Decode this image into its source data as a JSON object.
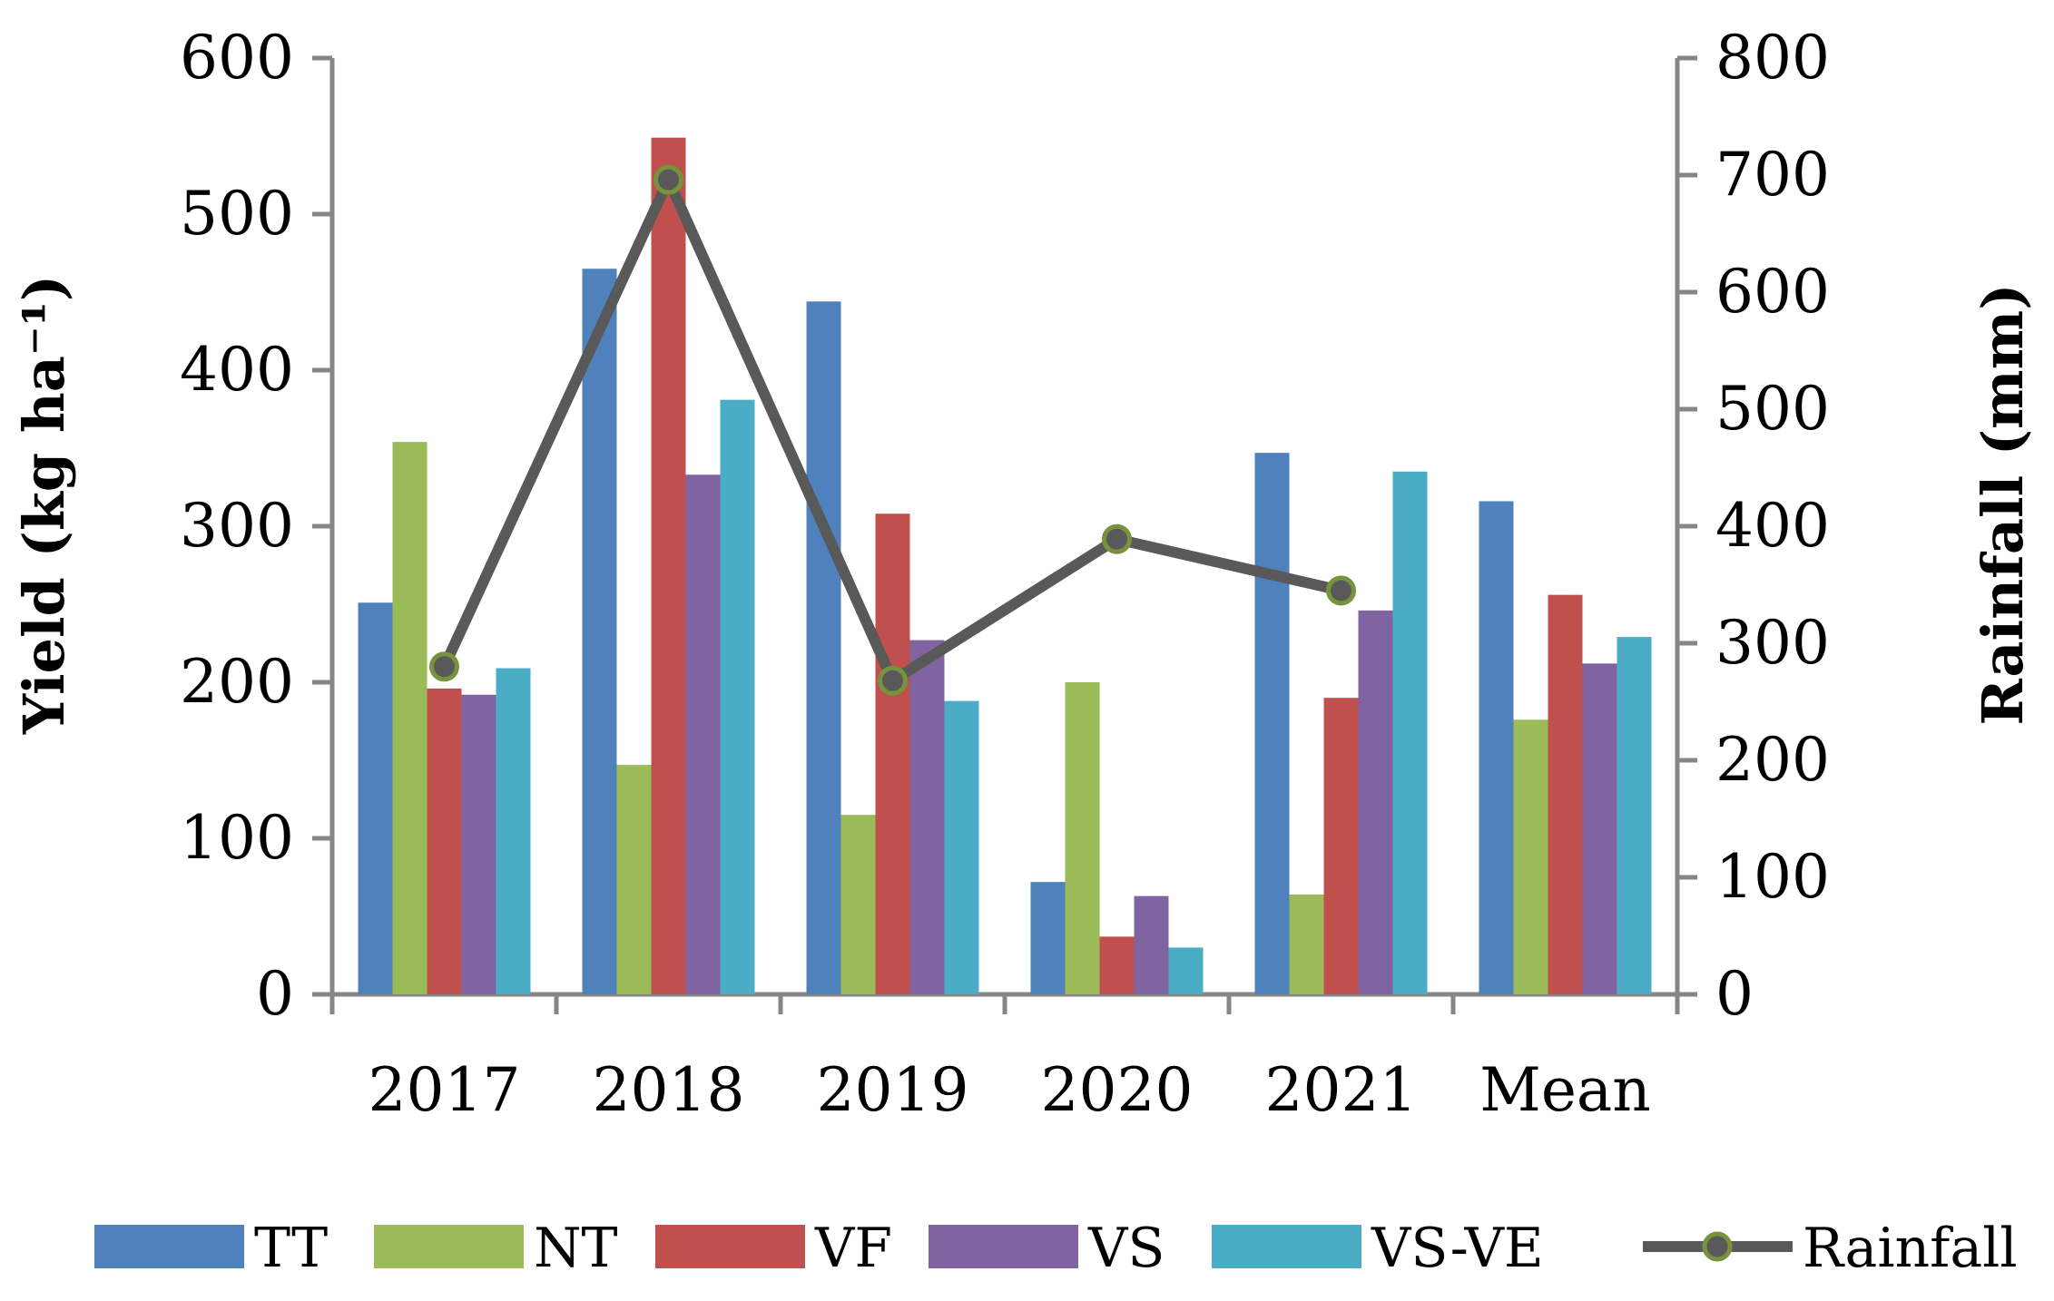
{
  "chart_data": {
    "type": "bar",
    "categories": [
      "2017",
      "2018",
      "2019",
      "2020",
      "2021",
      "Mean"
    ],
    "series": [
      {
        "name": "TT",
        "color": "#4F81BD",
        "values": [
          251,
          465,
          444,
          72,
          347,
          316
        ]
      },
      {
        "name": "NT",
        "color": "#9BBB59",
        "values": [
          354,
          147,
          115,
          200,
          64,
          176
        ]
      },
      {
        "name": "VF",
        "color": "#C0504D",
        "values": [
          196,
          549,
          308,
          37,
          190,
          256
        ]
      },
      {
        "name": "VS",
        "color": "#8064A2",
        "values": [
          192,
          333,
          227,
          63,
          246,
          212
        ]
      },
      {
        "name": "VS-VE",
        "color": "#4BACC6",
        "values": [
          209,
          381,
          188,
          30,
          335,
          229
        ]
      }
    ],
    "line_series": {
      "name": "Rainfall",
      "type": "line",
      "axis": "right",
      "color": "#595959",
      "marker_color": "#77933C",
      "categories": [
        "2017",
        "2018",
        "2019",
        "2020",
        "2021"
      ],
      "values": [
        280,
        696,
        268,
        389,
        345
      ]
    },
    "ylabel": "Yield (kg ha⁻¹)",
    "y2label": "Rainfall (mm)",
    "xlabel": "",
    "ylim": [
      0,
      600
    ],
    "y2lim": [
      0,
      800
    ],
    "yticks": [
      0,
      100,
      200,
      300,
      400,
      500,
      600
    ],
    "y2ticks": [
      0,
      100,
      200,
      300,
      400,
      500,
      600,
      700,
      800
    ],
    "grid": false,
    "legend_position": "bottom",
    "legend": [
      "TT",
      "NT",
      "VF",
      "VS",
      "VS-VE",
      "Rainfall"
    ]
  }
}
